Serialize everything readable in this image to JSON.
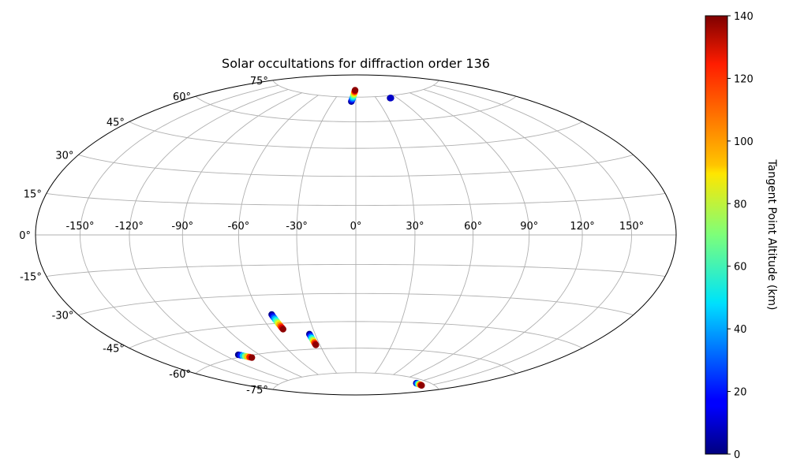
{
  "chart_data": {
    "type": "scatter",
    "projection": "hammer",
    "title": "Solar occultations for diffraction order 136",
    "x_ticks": [
      "-150°",
      "-120°",
      "-90°",
      "-60°",
      "-30°",
      "0°",
      "30°",
      "60°",
      "90°",
      "120°",
      "150°"
    ],
    "y_ticks": [
      "75°",
      "60°",
      "45°",
      "30°",
      "15°",
      "0°",
      "-15°",
      "-30°",
      "-45°",
      "-60°",
      "-75°"
    ],
    "xlim": [
      -180,
      180
    ],
    "ylim": [
      -90,
      90
    ],
    "grid": true,
    "colorbar": {
      "label": "Tangent Point Altitude (km)",
      "range": [
        0,
        140
      ],
      "ticks": [
        "0",
        "20",
        "40",
        "60",
        "80",
        "100",
        "120",
        "140"
      ],
      "colormap": "jet"
    },
    "series": [
      {
        "points": [
          {
            "lon": -6.0,
            "lat": 72.2,
            "alt": 2
          },
          {
            "lon": -5.6,
            "lat": 72.9,
            "alt": 12
          },
          {
            "lon": -5.2,
            "lat": 73.6,
            "alt": 24
          },
          {
            "lon": -4.8,
            "lat": 74.3,
            "alt": 36
          },
          {
            "lon": -4.4,
            "lat": 75.0,
            "alt": 48
          },
          {
            "lon": -4.0,
            "lat": 75.7,
            "alt": 60
          },
          {
            "lon": -3.6,
            "lat": 76.4,
            "alt": 72
          },
          {
            "lon": -3.2,
            "lat": 77.1,
            "alt": 84
          },
          {
            "lon": -2.8,
            "lat": 77.8,
            "alt": 96
          },
          {
            "lon": -2.4,
            "lat": 78.4,
            "alt": 110
          },
          {
            "lon": -2.0,
            "lat": 79.0,
            "alt": 124
          },
          {
            "lon": -1.6,
            "lat": 79.5,
            "alt": 138
          }
        ]
      },
      {
        "points": [
          {
            "lon": 50.0,
            "lat": 73.5,
            "alt": 2
          },
          {
            "lon": 50.6,
            "lat": 73.5,
            "alt": 6
          },
          {
            "lon": 51.2,
            "lat": 73.5,
            "alt": 10
          }
        ]
      },
      {
        "points": [
          {
            "lon": -53.0,
            "lat": -40.2,
            "alt": 2
          },
          {
            "lon": -52.9,
            "lat": -41.0,
            "alt": 14
          },
          {
            "lon": -52.7,
            "lat": -41.8,
            "alt": 28
          },
          {
            "lon": -52.5,
            "lat": -42.6,
            "alt": 42
          },
          {
            "lon": -52.3,
            "lat": -43.4,
            "alt": 56
          },
          {
            "lon": -52.1,
            "lat": -44.2,
            "alt": 70
          },
          {
            "lon": -51.9,
            "lat": -45.0,
            "alt": 84
          },
          {
            "lon": -51.7,
            "lat": -45.8,
            "alt": 98
          },
          {
            "lon": -51.5,
            "lat": -46.6,
            "alt": 112
          },
          {
            "lon": -51.3,
            "lat": -47.4,
            "alt": 126
          },
          {
            "lon": -51.1,
            "lat": -48.2,
            "alt": 138
          }
        ]
      },
      {
        "points": [
          {
            "lon": -34.2,
            "lat": -51.5,
            "alt": 2
          },
          {
            "lon": -34.1,
            "lat": -52.3,
            "alt": 18
          },
          {
            "lon": -34.0,
            "lat": -53.1,
            "alt": 36
          },
          {
            "lon": -33.9,
            "lat": -53.9,
            "alt": 54
          },
          {
            "lon": -33.8,
            "lat": -54.7,
            "alt": 72
          },
          {
            "lon": -33.7,
            "lat": -55.5,
            "alt": 90
          },
          {
            "lon": -33.6,
            "lat": -56.3,
            "alt": 110
          },
          {
            "lon": -33.5,
            "lat": -57.1,
            "alt": 128
          },
          {
            "lon": -33.4,
            "lat": -57.7,
            "alt": 138
          }
        ]
      },
      {
        "points": [
          {
            "lon": -108.0,
            "lat": -58.8,
            "alt": 2
          },
          {
            "lon": -106.8,
            "lat": -59.2,
            "alt": 20
          },
          {
            "lon": -105.6,
            "lat": -59.6,
            "alt": 45
          },
          {
            "lon": -104.4,
            "lat": -60.0,
            "alt": 70
          },
          {
            "lon": -103.2,
            "lat": -60.4,
            "alt": 95
          },
          {
            "lon": -102.0,
            "lat": -60.8,
            "alt": 118
          },
          {
            "lon": -100.8,
            "lat": -61.2,
            "alt": 138
          }
        ]
      },
      {
        "points": [
          {
            "lon": 124.0,
            "lat": -77.0,
            "alt": 2
          },
          {
            "lon": 125.8,
            "lat": -77.0,
            "alt": 16
          },
          {
            "lon": 127.6,
            "lat": -77.0,
            "alt": 30
          },
          {
            "lon": 129.4,
            "lat": -77.0,
            "alt": 44
          },
          {
            "lon": 131.2,
            "lat": -77.0,
            "alt": 58
          },
          {
            "lon": 133.0,
            "lat": -77.0,
            "alt": 72
          },
          {
            "lon": 134.8,
            "lat": -77.0,
            "alt": 86
          },
          {
            "lon": 136.6,
            "lat": -77.0,
            "alt": 100
          },
          {
            "lon": 138.4,
            "lat": -77.0,
            "alt": 114
          },
          {
            "lon": 140.2,
            "lat": -77.0,
            "alt": 128
          },
          {
            "lon": 142.0,
            "lat": -77.0,
            "alt": 138
          }
        ]
      }
    ]
  }
}
